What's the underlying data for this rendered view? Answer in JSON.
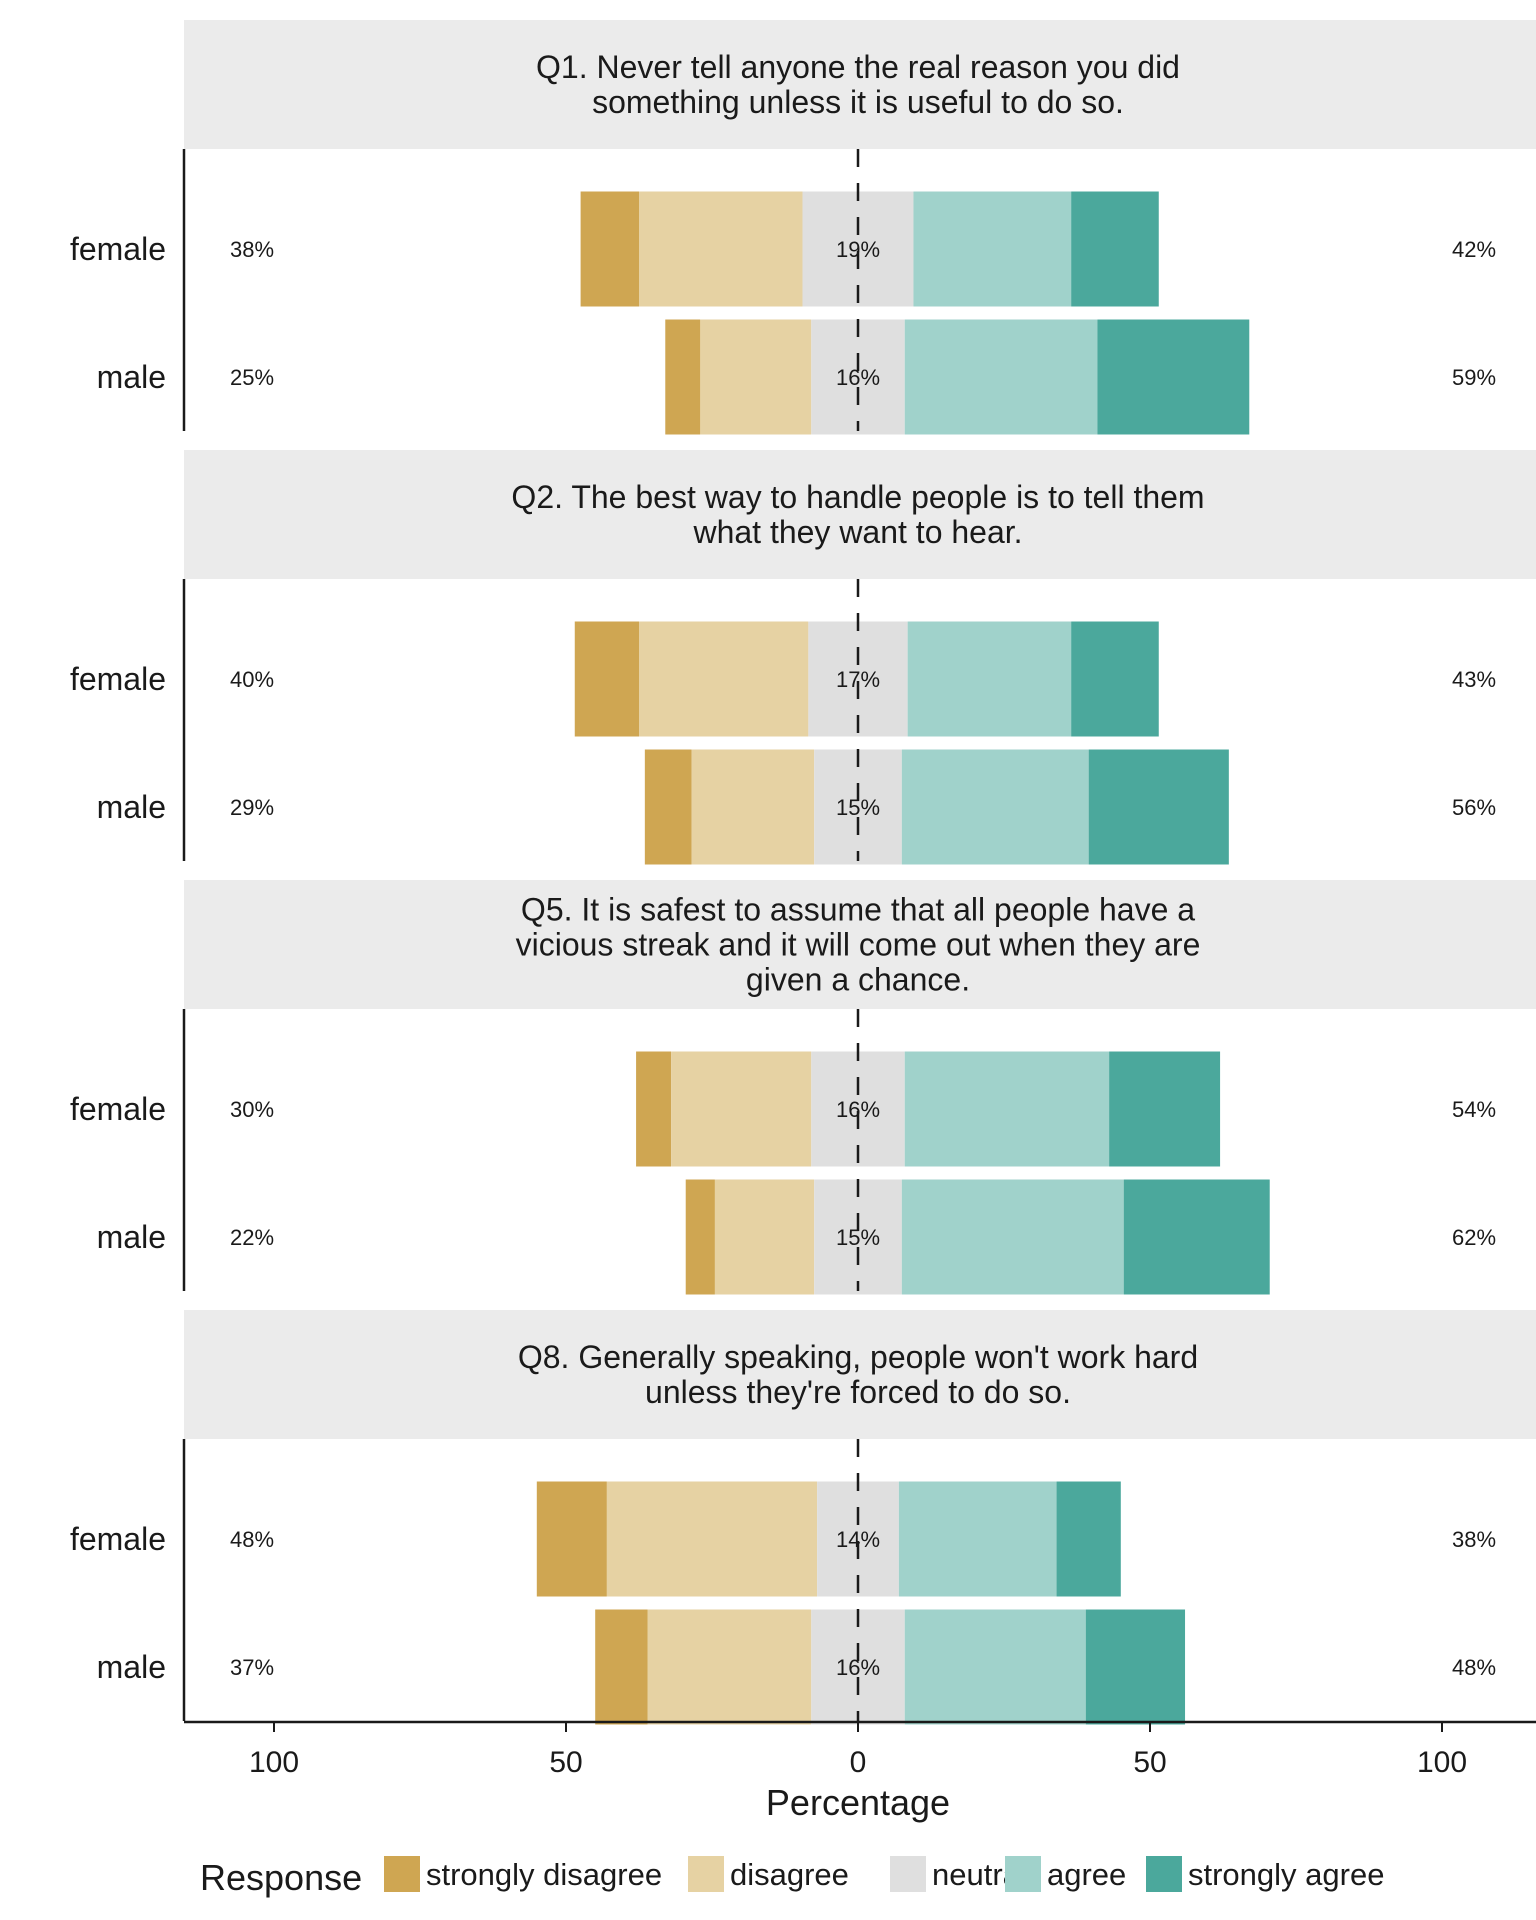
{
  "chart_data": {
    "type": "bar",
    "orientation": "horizontal-diverging",
    "xlabel": "Percentage",
    "xticks": [
      100,
      50,
      0,
      50,
      100
    ],
    "xlim": [
      -100,
      100
    ],
    "legend": {
      "title": "Response",
      "position": "bottom",
      "items": [
        "strongly disagree",
        "disagree",
        "neutral",
        "agree",
        "strongly agree"
      ]
    },
    "colors": {
      "strongly disagree": "#cfa652",
      "disagree": "#e6d2a3",
      "neutral": "#dfdfdf",
      "agree": "#a0d2cb",
      "strongly agree": "#4ba89c",
      "strip": "#ebebeb"
    },
    "panels": [
      {
        "title_lines": [
          "Q1. Never tell anyone the real reason you did",
          "something unless it is useful to do so."
        ],
        "groups": [
          {
            "name": "female",
            "values": [
              10,
              28,
              19,
              27,
              15
            ],
            "left_label": "38%",
            "neutral_label": "19%",
            "right_label": "42%"
          },
          {
            "name": "male",
            "values": [
              6,
              19,
              16,
              33,
              26
            ],
            "left_label": "25%",
            "neutral_label": "16%",
            "right_label": "59%"
          }
        ]
      },
      {
        "title_lines": [
          "Q2. The best way to handle people is to tell them",
          "what they want to hear."
        ],
        "groups": [
          {
            "name": "female",
            "values": [
              11,
              29,
              17,
              28,
              15
            ],
            "left_label": "40%",
            "neutral_label": "17%",
            "right_label": "43%"
          },
          {
            "name": "male",
            "values": [
              8,
              21,
              15,
              32,
              24
            ],
            "left_label": "29%",
            "neutral_label": "15%",
            "right_label": "56%"
          }
        ]
      },
      {
        "title_lines": [
          "Q5. It is safest to assume that all people have a",
          "vicious streak and it will come out when they are",
          "given a chance."
        ],
        "groups": [
          {
            "name": "female",
            "values": [
              6,
              24,
              16,
              35,
              19
            ],
            "left_label": "30%",
            "neutral_label": "16%",
            "right_label": "54%"
          },
          {
            "name": "male",
            "values": [
              5,
              17,
              15,
              38,
              25
            ],
            "left_label": "22%",
            "neutral_label": "15%",
            "right_label": "62%"
          }
        ]
      },
      {
        "title_lines": [
          "Q8. Generally speaking, people won't work hard",
          "unless they're forced to do so."
        ],
        "groups": [
          {
            "name": "female",
            "values": [
              12,
              36,
              14,
              27,
              11
            ],
            "left_label": "48%",
            "neutral_label": "14%",
            "right_label": "38%"
          },
          {
            "name": "male",
            "values": [
              9,
              28,
              16,
              31,
              17
            ],
            "left_label": "37%",
            "neutral_label": "16%",
            "right_label": "48%"
          }
        ]
      }
    ]
  }
}
